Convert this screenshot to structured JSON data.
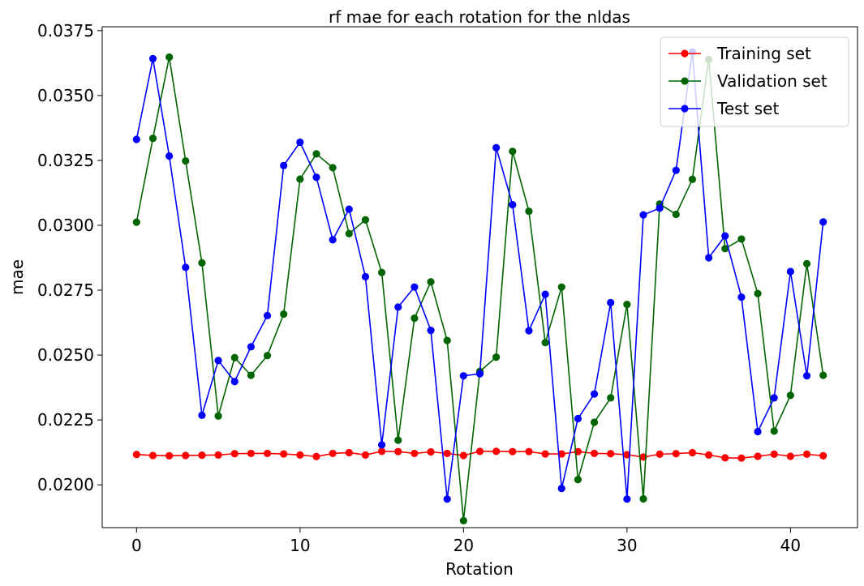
{
  "chart_data": {
    "type": "line",
    "title": "rf mae for each rotation for the nldas",
    "xlabel": "Rotation",
    "ylabel": "mae",
    "xlim": [
      -2.1,
      44.1
    ],
    "ylim": [
      0.01835,
      0.03765
    ],
    "x_ticks": [
      0,
      10,
      20,
      30,
      40
    ],
    "x_tick_labels": [
      "0",
      "10",
      "20",
      "30",
      "40"
    ],
    "y_ticks": [
      0.02,
      0.0225,
      0.025,
      0.0275,
      0.03,
      0.0325,
      0.035,
      0.0375
    ],
    "y_tick_labels": [
      "0.0200",
      "0.0225",
      "0.0250",
      "0.0275",
      "0.0300",
      "0.0325",
      "0.0350",
      "0.0375"
    ],
    "grid": false,
    "legend_position": "top-right",
    "marker": "circle",
    "x": [
      0,
      1,
      2,
      3,
      4,
      5,
      6,
      7,
      8,
      9,
      10,
      11,
      12,
      13,
      14,
      15,
      16,
      17,
      18,
      19,
      20,
      21,
      22,
      23,
      24,
      25,
      26,
      27,
      28,
      29,
      30,
      31,
      32,
      33,
      34,
      35,
      36,
      37,
      38,
      39,
      40,
      41,
      42
    ],
    "series": [
      {
        "name": "Training set",
        "color": "#ff0000",
        "values": [
          0.02117,
          0.02113,
          0.02112,
          0.02113,
          0.02114,
          0.02115,
          0.0212,
          0.02121,
          0.02121,
          0.02119,
          0.02115,
          0.02109,
          0.02121,
          0.02124,
          0.02115,
          0.02129,
          0.02128,
          0.02121,
          0.02127,
          0.02121,
          0.02113,
          0.02129,
          0.02129,
          0.02128,
          0.02128,
          0.02119,
          0.02119,
          0.02128,
          0.02121,
          0.0212,
          0.02116,
          0.02107,
          0.02118,
          0.0212,
          0.02124,
          0.02115,
          0.02104,
          0.02103,
          0.0211,
          0.02118,
          0.0211,
          0.02118,
          0.02112
        ]
      },
      {
        "name": "Validation set",
        "color": "#006400",
        "values": [
          0.03012,
          0.03335,
          0.03648,
          0.03248,
          0.02855,
          0.02265,
          0.0249,
          0.02422,
          0.02498,
          0.02658,
          0.03178,
          0.03275,
          0.03222,
          0.02968,
          0.03021,
          0.02818,
          0.02172,
          0.02642,
          0.02782,
          0.02556,
          0.01862,
          0.02437,
          0.02492,
          0.03285,
          0.03054,
          0.02548,
          0.02762,
          0.0202,
          0.02241,
          0.02335,
          0.02695,
          0.01946,
          0.03082,
          0.03042,
          0.03177,
          0.03639,
          0.0291,
          0.02947,
          0.02737,
          0.02207,
          0.02345,
          0.02852,
          0.02422
        ]
      },
      {
        "name": "Test set",
        "color": "#0000ff",
        "values": [
          0.03331,
          0.03642,
          0.03267,
          0.02838,
          0.02268,
          0.02479,
          0.02398,
          0.02532,
          0.02652,
          0.0323,
          0.0332,
          0.03185,
          0.02944,
          0.03062,
          0.02802,
          0.02154,
          0.02685,
          0.02762,
          0.02595,
          0.01945,
          0.0242,
          0.02428,
          0.03299,
          0.03079,
          0.02594,
          0.02734,
          0.01986,
          0.02255,
          0.0235,
          0.02702,
          0.01945,
          0.0304,
          0.03066,
          0.03212,
          0.03668,
          0.02875,
          0.02959,
          0.02723,
          0.02205,
          0.02335,
          0.02822,
          0.0242,
          0.03013
        ]
      }
    ]
  }
}
